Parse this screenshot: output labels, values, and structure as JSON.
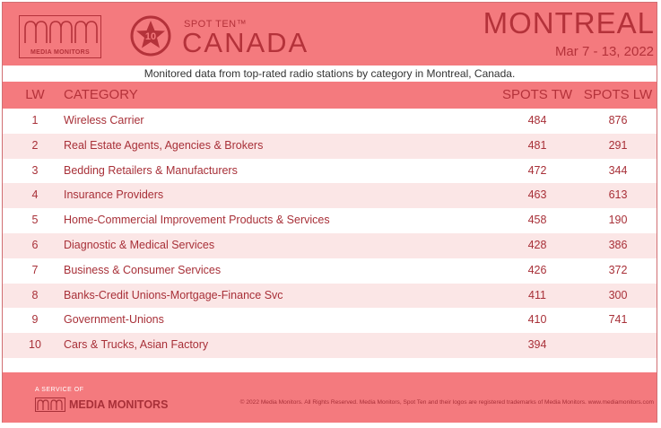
{
  "header": {
    "logo_text": "MEDIA MONITORS",
    "badge_number": "10",
    "spot_ten": "SPOT TEN™",
    "country": "CANADA",
    "city": "MONTREAL",
    "dates": "Mar 7 - 13, 2022"
  },
  "subtitle": "Monitored data from top-rated radio stations by category in Montreal, Canada.",
  "table": {
    "columns": {
      "lw": "LW",
      "category": "CATEGORY",
      "spots_tw": "SPOTS TW",
      "spots_lw": "SPOTS LW"
    },
    "rows": [
      {
        "lw": "1",
        "category": "Wireless Carrier",
        "spots_tw": "484",
        "spots_lw": "876"
      },
      {
        "lw": "2",
        "category": "Real Estate Agents, Agencies & Brokers",
        "spots_tw": "481",
        "spots_lw": "291"
      },
      {
        "lw": "3",
        "category": "Bedding Retailers & Manufacturers",
        "spots_tw": "472",
        "spots_lw": "344"
      },
      {
        "lw": "4",
        "category": "Insurance Providers",
        "spots_tw": "463",
        "spots_lw": "613"
      },
      {
        "lw": "5",
        "category": "Home-Commercial Improvement Products & Services",
        "spots_tw": "458",
        "spots_lw": "190"
      },
      {
        "lw": "6",
        "category": "Diagnostic & Medical Services",
        "spots_tw": "428",
        "spots_lw": "386"
      },
      {
        "lw": "7",
        "category": "Business & Consumer Services",
        "spots_tw": "426",
        "spots_lw": "372"
      },
      {
        "lw": "8",
        "category": "Banks-Credit Unions-Mortgage-Finance Svc",
        "spots_tw": "411",
        "spots_lw": "300"
      },
      {
        "lw": "9",
        "category": "Government-Unions",
        "spots_tw": "410",
        "spots_lw": "741"
      },
      {
        "lw": "10",
        "category": "Cars & Trucks, Asian Factory",
        "spots_tw": "394",
        "spots_lw": ""
      }
    ]
  },
  "footer": {
    "service_label": "A SERVICE OF",
    "logo_text": "MEDIA MONITORS",
    "copyright": "© 2022 Media Monitors. All Rights Reserved. Media Monitors, Spot Ten and their logos are registered trademarks of Media Monitors. www.mediamonitors.com"
  },
  "colors": {
    "header_bg": "#f47a7e",
    "brand_dark": "#b4323a",
    "row_alt": "#fbe6e6"
  }
}
